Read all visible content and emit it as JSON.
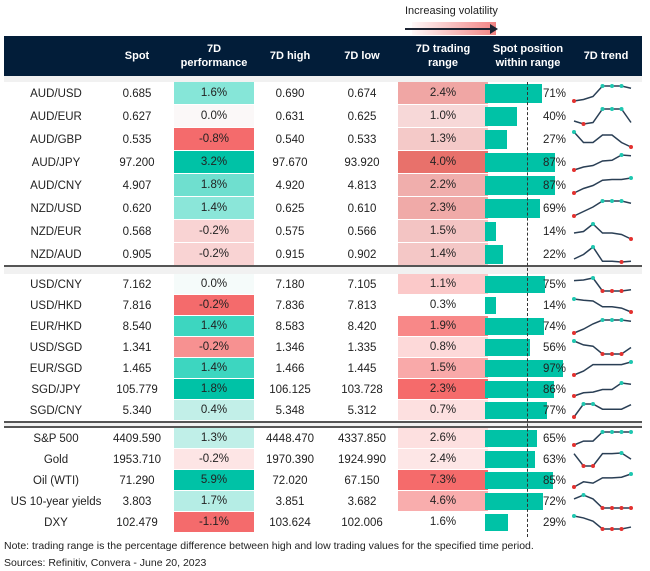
{
  "legend": {
    "volatility_label": "Increasing volatility"
  },
  "headers": [
    "",
    "Spot",
    "7D performance",
    "7D high",
    "7D low",
    "7D trading range",
    "Spot position within range",
    "7D trend"
  ],
  "colors": {
    "header_bg": "#021d39",
    "bar": "#00c2a6",
    "high_marker": "#1fc7b0",
    "low_marker": "#e3312f",
    "trend_line": "#2a3f55"
  },
  "chart_data": {
    "type": "table",
    "groups": [
      {
        "rows": [
          {
            "name": "AUD/USD",
            "spot": "0.685",
            "perf": "1.6%",
            "perf_color": "#86e6d8",
            "high": "0.690",
            "low": "0.674",
            "range": "2.4%",
            "range_color": "#f0a6a4",
            "position": 71,
            "position_label": "71%",
            "trend": [
              0,
              0.1,
              0.3,
              1,
              1,
              1,
              0.85
            ]
          },
          {
            "name": "AUD/EUR",
            "spot": "0.627",
            "perf": "0.0%",
            "perf_color": "#fbf8f8",
            "high": "0.631",
            "low": "0.625",
            "range": "1.0%",
            "range_color": "#f7d8d8",
            "position": 40,
            "position_label": "40%",
            "trend": [
              0.2,
              0,
              0.1,
              1,
              1,
              1,
              0.1
            ]
          },
          {
            "name": "AUD/GBP",
            "spot": "0.535",
            "perf": "-0.8%",
            "perf_color": "#f46b6c",
            "high": "0.540",
            "low": "0.533",
            "range": "1.3%",
            "range_color": "#f4c9c8",
            "position": 27,
            "position_label": "27%",
            "trend": [
              1,
              0.3,
              0.3,
              0.8,
              0.8,
              0.3,
              0
            ]
          },
          {
            "name": "AUD/JPY",
            "spot": "97.200",
            "perf": "3.2%",
            "perf_color": "#00c2a6",
            "high": "97.670",
            "low": "93.920",
            "range": "4.0%",
            "range_color": "#e8716b",
            "position": 87,
            "position_label": "87%",
            "trend": [
              0,
              0.2,
              0.3,
              0.6,
              0.65,
              1,
              0.95
            ]
          },
          {
            "name": "AUD/CNY",
            "spot": "4.907",
            "perf": "1.8%",
            "perf_color": "#6fdfcf",
            "high": "4.920",
            "low": "4.813",
            "range": "2.2%",
            "range_color": "#f0aeac",
            "position": 87,
            "position_label": "87%",
            "trend": [
              0,
              0.3,
              0.5,
              0.85,
              0.9,
              0.9,
              1
            ]
          },
          {
            "name": "NZD/USD",
            "spot": "0.620",
            "perf": "1.4%",
            "perf_color": "#8be6d9",
            "high": "0.625",
            "low": "0.610",
            "range": "2.3%",
            "range_color": "#f0aaa8",
            "position": 69,
            "position_label": "69%",
            "trend": [
              0,
              0.3,
              0.6,
              1,
              1,
              1,
              0.85
            ]
          },
          {
            "name": "NZD/EUR",
            "spot": "0.568",
            "perf": "-0.2%",
            "perf_color": "#f9d3d3",
            "high": "0.575",
            "low": "0.566",
            "range": "1.5%",
            "range_color": "#f3c4c3",
            "position": 14,
            "position_label": "14%",
            "trend": [
              0.4,
              0.5,
              1,
              0.4,
              0.4,
              0.3,
              0
            ]
          },
          {
            "name": "NZD/AUD",
            "spot": "0.905",
            "perf": "-0.2%",
            "perf_color": "#f9d3d3",
            "high": "0.915",
            "low": "0.902",
            "range": "1.4%",
            "range_color": "#f4c7c6",
            "position": 22,
            "position_label": "22%",
            "trend": [
              0.2,
              0.5,
              1,
              0.05,
              0.05,
              0,
              0.05
            ]
          }
        ]
      },
      {
        "rows": [
          {
            "name": "USD/CNY",
            "spot": "7.162",
            "perf": "0.0%",
            "perf_color": "#f5fbfa",
            "high": "7.180",
            "low": "7.105",
            "range": "1.1%",
            "range_color": "#fbc9c9",
            "position": 75,
            "position_label": "75%",
            "trend": [
              0.8,
              0.85,
              1,
              0,
              0,
              0,
              0.1
            ]
          },
          {
            "name": "USD/HKD",
            "spot": "7.816",
            "perf": "-0.2%",
            "perf_color": "#f46b6c",
            "high": "7.836",
            "low": "7.813",
            "range": "0.3%",
            "range_color": "#ffffff",
            "position": 14,
            "position_label": "14%",
            "trend": [
              1,
              0.9,
              0.85,
              0.4,
              0.4,
              0.3,
              0
            ]
          },
          {
            "name": "EUR/HKD",
            "spot": "8.540",
            "perf": "1.4%",
            "perf_color": "#3dd6c0",
            "high": "8.583",
            "low": "8.420",
            "range": "1.9%",
            "range_color": "#f88888",
            "position": 74,
            "position_label": "74%",
            "trend": [
              0,
              0.3,
              0.7,
              1,
              1,
              1,
              0.9
            ]
          },
          {
            "name": "USD/SGD",
            "spot": "1.341",
            "perf": "-0.2%",
            "perf_color": "#f79191",
            "high": "1.346",
            "low": "1.335",
            "range": "0.8%",
            "range_color": "#fdd9d9",
            "position": 56,
            "position_label": "56%",
            "trend": [
              1,
              0.7,
              0.6,
              0,
              0,
              0,
              0.5
            ]
          },
          {
            "name": "EUR/SGD",
            "spot": "1.465",
            "perf": "1.4%",
            "perf_color": "#3dd6c0",
            "high": "1.466",
            "low": "1.445",
            "range": "1.5%",
            "range_color": "#f9a9a9",
            "position": 97,
            "position_label": "97%",
            "trend": [
              0,
              0.3,
              0.8,
              0.8,
              0.8,
              0.8,
              1
            ]
          },
          {
            "name": "SGD/JPY",
            "spot": "105.779",
            "perf": "1.8%",
            "perf_color": "#00c2a6",
            "high": "106.125",
            "low": "103.728",
            "range": "2.3%",
            "range_color": "#f56b6b",
            "position": 86,
            "position_label": "86%",
            "trend": [
              0,
              0.25,
              0.3,
              0.5,
              0.5,
              1,
              0.9
            ]
          },
          {
            "name": "SGD/CNY",
            "spot": "5.340",
            "perf": "0.4%",
            "perf_color": "#c2efe8",
            "high": "5.348",
            "low": "5.312",
            "range": "0.7%",
            "range_color": "#fde0e0",
            "position": 77,
            "position_label": "77%",
            "trend": [
              0,
              1,
              1,
              0.6,
              0.6,
              0.6,
              0.95
            ]
          }
        ]
      },
      {
        "rows": [
          {
            "name": "S&P 500",
            "spot": "4409.590",
            "perf": "1.3%",
            "perf_color": "#c0efe8",
            "high": "4448.470",
            "low": "4337.850",
            "range": "2.6%",
            "range_color": "#fde0e0",
            "position": 65,
            "position_label": "65%",
            "trend": [
              0,
              0.3,
              0.3,
              1,
              1,
              1,
              1
            ]
          },
          {
            "name": "Gold",
            "spot": "1953.710",
            "perf": "-0.2%",
            "perf_color": "#fde5e5",
            "high": "1970.390",
            "low": "1924.990",
            "range": "2.4%",
            "range_color": "#fde6e6",
            "position": 63,
            "position_label": "63%",
            "trend": [
              0.9,
              0,
              0,
              0.9,
              0.9,
              0.95,
              0.5
            ]
          },
          {
            "name": "Oil (WTI)",
            "spot": "71.290",
            "perf": "5.9%",
            "perf_color": "#00c2a6",
            "high": "72.020",
            "low": "67.150",
            "range": "7.3%",
            "range_color": "#f56b6b",
            "position": 85,
            "position_label": "85%",
            "trend": [
              0,
              0.4,
              0.3,
              0.7,
              0.7,
              0.75,
              1
            ]
          },
          {
            "name": "US 10-year yields",
            "spot": "3.803",
            "perf": "1.7%",
            "perf_color": "#b5ede5",
            "high": "3.851",
            "low": "3.682",
            "range": "4.6%",
            "range_color": "#f9adad",
            "position": 72,
            "position_label": "72%",
            "trend": [
              0.7,
              1,
              0.7,
              0,
              0,
              0,
              0
            ]
          },
          {
            "name": "DXY",
            "spot": "102.479",
            "perf": "-1.1%",
            "perf_color": "#f46b6c",
            "high": "103.624",
            "low": "102.006",
            "range": "1.6%",
            "range_color": "#ffffff",
            "position": 29,
            "position_label": "29%",
            "trend": [
              1,
              0.85,
              0.6,
              0,
              0,
              0,
              0.15
            ]
          }
        ]
      }
    ]
  },
  "footer": {
    "note": "Note: trading range is the percentage difference between high and low trading values for the specified time period.",
    "sources": "Sources: Refinitiv, Convera - June 20, 2023"
  }
}
